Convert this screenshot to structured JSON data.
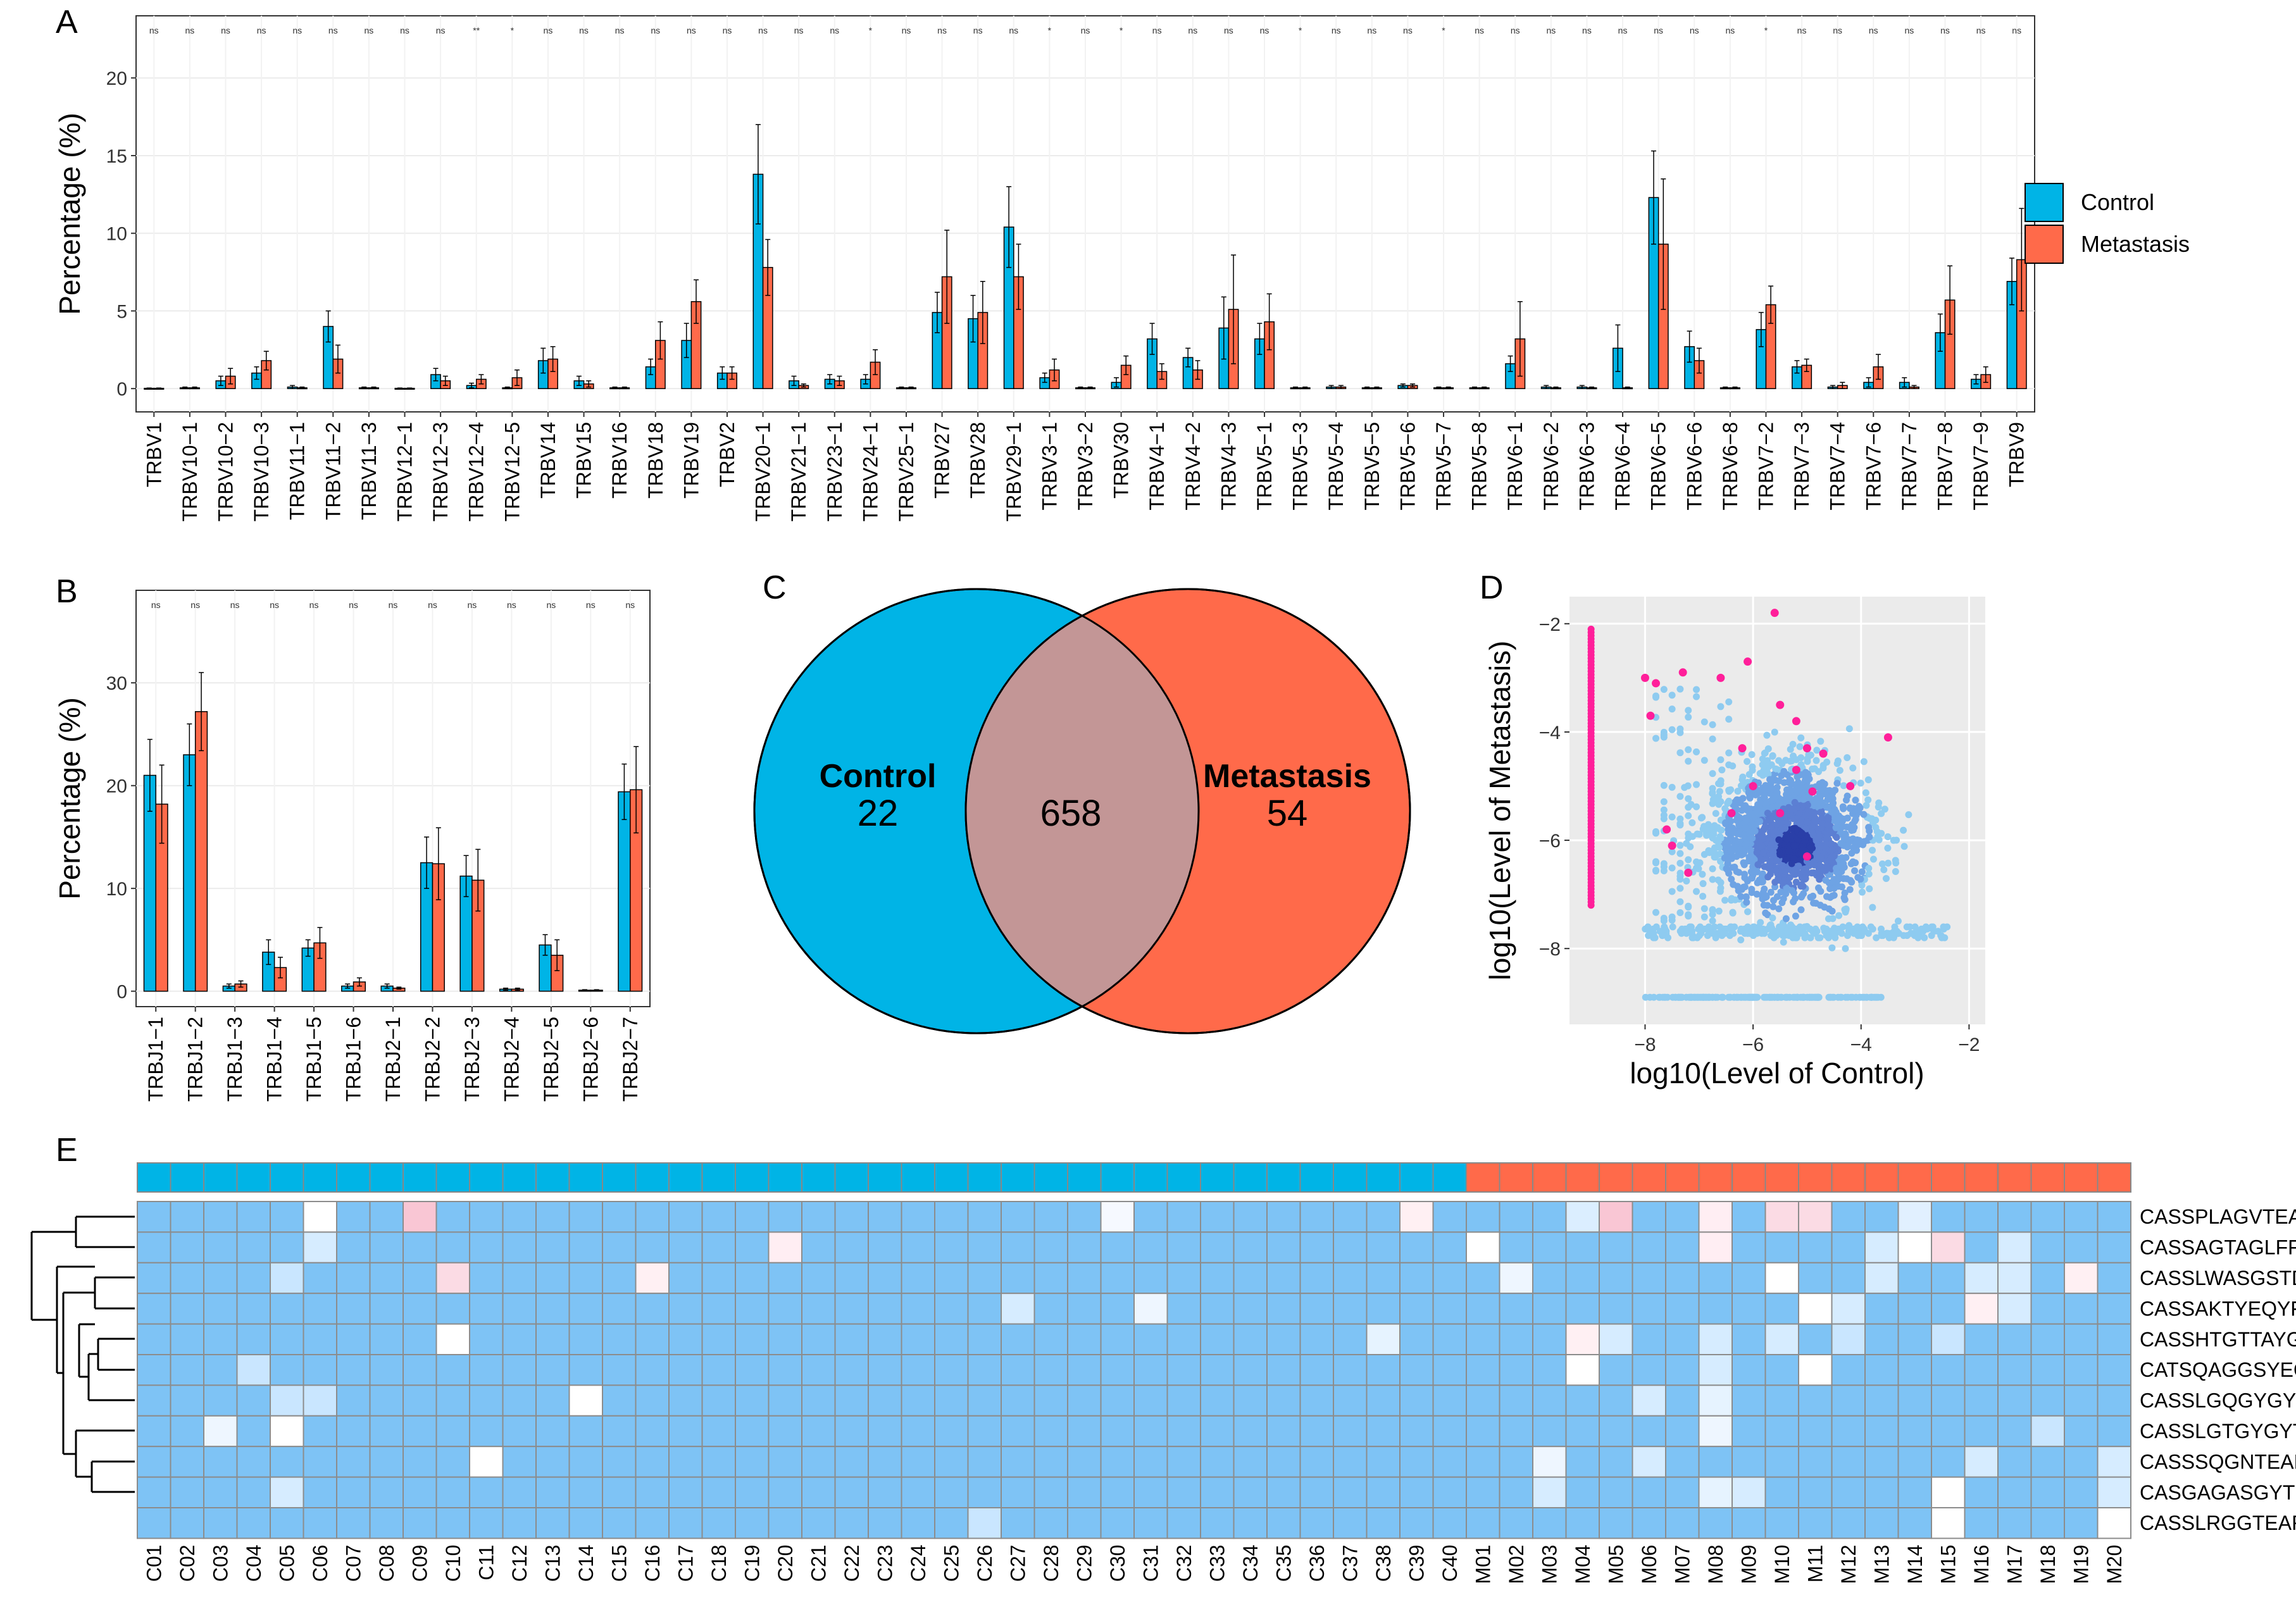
{
  "colors": {
    "control": "#00b4e6",
    "metastasis": "#ff6a4a",
    "hm_base": "#7ec3f5",
    "scatter": "#8ecbf0",
    "scatter_dense": "#2a3fa8",
    "highlight": "#ff1f9a",
    "overlap": "#c39696"
  },
  "panel_labels": {
    "a": "A",
    "b": "B",
    "c": "C",
    "d": "D",
    "e": "E"
  },
  "legend": {
    "control": "Control",
    "metastasis": "Metastasis"
  },
  "chart_data": [
    {
      "id": "A",
      "type": "bar",
      "ylabel": "Percentage (%)",
      "ylim": [
        -1.5,
        24
      ],
      "yticks": [
        0,
        5,
        10,
        15,
        20
      ],
      "categories": [
        "TRBV1",
        "TRBV10−1",
        "TRBV10−2",
        "TRBV10−3",
        "TRBV11−1",
        "TRBV11−2",
        "TRBV11−3",
        "TRBV12−1",
        "TRBV12−3",
        "TRBV12−4",
        "TRBV12−5",
        "TRBV14",
        "TRBV15",
        "TRBV16",
        "TRBV18",
        "TRBV19",
        "TRBV2",
        "TRBV20−1",
        "TRBV21−1",
        "TRBV23−1",
        "TRBV24−1",
        "TRBV25−1",
        "TRBV27",
        "TRBV28",
        "TRBV29−1",
        "TRBV3−1",
        "TRBV3−2",
        "TRBV30",
        "TRBV4−1",
        "TRBV4−2",
        "TRBV4−3",
        "TRBV5−1",
        "TRBV5−3",
        "TRBV5−4",
        "TRBV5−5",
        "TRBV5−6",
        "TRBV5−7",
        "TRBV5−8",
        "TRBV6−1",
        "TRBV6−2",
        "TRBV6−3",
        "TRBV6−4",
        "TRBV6−5",
        "TRBV6−6",
        "TRBV6−8",
        "TRBV7−2",
        "TRBV7−3",
        "TRBV7−4",
        "TRBV7−6",
        "TRBV7−7",
        "TRBV7−8",
        "TRBV7−9",
        "TRBV9"
      ],
      "significance": [
        "ns",
        "ns",
        "ns",
        "ns",
        "ns",
        "ns",
        "ns",
        "ns",
        "ns",
        "**",
        "*",
        "ns",
        "ns",
        "ns",
        "ns",
        "ns",
        "ns",
        "ns",
        "ns",
        "ns",
        "*",
        "ns",
        "ns",
        "ns",
        "ns",
        "*",
        "ns",
        "*",
        "ns",
        "ns",
        "ns",
        "ns",
        "*",
        "ns",
        "ns",
        "ns",
        "*",
        "ns",
        "ns",
        "ns",
        "ns",
        "ns",
        "ns",
        "ns",
        "ns",
        "*",
        "ns",
        "ns",
        "ns",
        "ns",
        "ns",
        "ns",
        "ns"
      ],
      "series": [
        {
          "name": "Control",
          "values": [
            0.02,
            0.05,
            0.5,
            1.0,
            0.1,
            4.0,
            0.05,
            0.02,
            0.9,
            0.2,
            0.05,
            1.8,
            0.5,
            0.05,
            1.4,
            3.1,
            1.0,
            13.8,
            0.5,
            0.6,
            0.6,
            0.05,
            4.9,
            4.5,
            10.4,
            0.7,
            0.05,
            0.4,
            3.2,
            2.0,
            3.9,
            3.2,
            0.05,
            0.1,
            0.05,
            0.2,
            0.05,
            0.05,
            1.6,
            0.1,
            0.1,
            2.6,
            12.3,
            2.7,
            0.05,
            3.8,
            1.4,
            0.1,
            0.4,
            0.4,
            3.6,
            0.6,
            6.9
          ],
          "errors": [
            0.02,
            0.05,
            0.3,
            0.4,
            0.1,
            1.0,
            0.05,
            0.02,
            0.4,
            0.15,
            0.05,
            0.8,
            0.3,
            0.05,
            0.5,
            1.1,
            0.4,
            3.2,
            0.3,
            0.3,
            0.3,
            0.05,
            1.3,
            1.5,
            2.6,
            0.3,
            0.05,
            0.3,
            1.0,
            0.6,
            2.0,
            1.0,
            0.05,
            0.1,
            0.05,
            0.1,
            0.05,
            0.05,
            0.5,
            0.1,
            0.1,
            1.5,
            3.0,
            1.0,
            0.05,
            1.1,
            0.4,
            0.1,
            0.3,
            0.3,
            1.2,
            0.3,
            1.5
          ]
        },
        {
          "name": "Metastasis",
          "values": [
            0.02,
            0.05,
            0.8,
            1.8,
            0.05,
            1.9,
            0.05,
            0.02,
            0.5,
            0.6,
            0.7,
            1.9,
            0.3,
            0.05,
            3.1,
            5.6,
            1.0,
            7.8,
            0.2,
            0.5,
            1.7,
            0.05,
            7.2,
            4.9,
            7.2,
            1.2,
            0.05,
            1.5,
            1.1,
            1.2,
            5.1,
            4.3,
            0.05,
            0.1,
            0.05,
            0.2,
            0.05,
            0.05,
            3.2,
            0.05,
            0.05,
            0.05,
            9.3,
            1.8,
            0.05,
            5.4,
            1.5,
            0.2,
            1.4,
            0.1,
            5.7,
            0.9,
            8.3
          ],
          "errors": [
            0.02,
            0.05,
            0.5,
            0.6,
            0.05,
            0.9,
            0.05,
            0.02,
            0.3,
            0.3,
            0.5,
            0.8,
            0.2,
            0.05,
            1.2,
            1.4,
            0.4,
            1.8,
            0.1,
            0.3,
            0.8,
            0.05,
            3.0,
            2.0,
            2.1,
            0.7,
            0.05,
            0.6,
            0.5,
            0.6,
            3.5,
            1.8,
            0.05,
            0.1,
            0.05,
            0.1,
            0.05,
            0.05,
            2.4,
            0.05,
            0.05,
            0.05,
            4.2,
            0.8,
            0.05,
            1.2,
            0.4,
            0.2,
            0.8,
            0.1,
            2.2,
            0.5,
            3.3
          ]
        }
      ]
    },
    {
      "id": "B",
      "type": "bar",
      "ylabel": "Percentage (%)",
      "ylim": [
        -1.5,
        39
      ],
      "yticks": [
        0,
        10,
        20,
        30
      ],
      "categories": [
        "TRBJ1−1",
        "TRBJ1−2",
        "TRBJ1−3",
        "TRBJ1−4",
        "TRBJ1−5",
        "TRBJ1−6",
        "TRBJ2−1",
        "TRBJ2−2",
        "TRBJ2−3",
        "TRBJ2−4",
        "TRBJ2−5",
        "TRBJ2−6",
        "TRBJ2−7"
      ],
      "significance": [
        "ns",
        "ns",
        "ns",
        "ns",
        "ns",
        "ns",
        "ns",
        "ns",
        "ns",
        "ns",
        "ns",
        "ns",
        "ns"
      ],
      "series": [
        {
          "name": "Control",
          "values": [
            21.0,
            23.0,
            0.5,
            3.8,
            4.2,
            0.5,
            0.5,
            12.5,
            11.2,
            0.2,
            4.5,
            0.1,
            19.4
          ],
          "errors": [
            3.5,
            3.0,
            0.2,
            1.2,
            0.8,
            0.2,
            0.2,
            2.5,
            2.0,
            0.1,
            1.0,
            0.05,
            2.7
          ]
        },
        {
          "name": "Metastasis",
          "values": [
            18.2,
            27.2,
            0.7,
            2.3,
            4.7,
            0.9,
            0.3,
            12.4,
            10.8,
            0.2,
            3.5,
            0.1,
            19.6
          ],
          "errors": [
            3.8,
            3.8,
            0.3,
            1.0,
            1.5,
            0.4,
            0.1,
            3.5,
            3.0,
            0.1,
            1.5,
            0.05,
            4.2
          ]
        }
      ]
    },
    {
      "id": "C",
      "type": "venn",
      "sets": [
        {
          "label": "Control",
          "only": "22"
        },
        {
          "label": "Metastasis",
          "only": "54"
        }
      ],
      "overlap": "658"
    },
    {
      "id": "D",
      "type": "scatter",
      "xlabel": "log10(Level of Control)",
      "ylabel": "log10(Level of Metastasis)",
      "xlim": [
        -9.4,
        -1.7
      ],
      "ylim": [
        -9.4,
        -1.5
      ],
      "xticks": [
        -8,
        -6,
        -4,
        -2
      ],
      "yticks": [
        -2,
        -4,
        -6,
        -8
      ],
      "highlighted_points": [
        [
          -5.6,
          -1.8
        ],
        [
          -8.0,
          -3.0
        ],
        [
          -7.8,
          -3.1
        ],
        [
          -7.3,
          -2.9
        ],
        [
          -6.6,
          -3.0
        ],
        [
          -6.1,
          -2.7
        ],
        [
          -5.5,
          -3.5
        ],
        [
          -5.2,
          -3.8
        ],
        [
          -5.0,
          -4.3
        ],
        [
          -5.2,
          -4.7
        ],
        [
          -4.7,
          -4.4
        ],
        [
          -6.2,
          -4.3
        ],
        [
          -6.0,
          -5.0
        ],
        [
          -5.5,
          -5.5
        ],
        [
          -6.4,
          -5.5
        ],
        [
          -4.9,
          -5.1
        ],
        [
          -4.2,
          -5.0
        ],
        [
          -3.5,
          -4.1
        ],
        [
          -7.6,
          -5.8
        ],
        [
          -7.5,
          -6.1
        ],
        [
          -7.2,
          -6.6
        ],
        [
          -5.0,
          -6.3
        ],
        [
          -7.9,
          -3.7
        ]
      ]
    },
    {
      "id": "E",
      "type": "heatmap",
      "columns": [
        "C01",
        "C02",
        "C03",
        "C04",
        "C05",
        "C06",
        "C07",
        "C08",
        "C09",
        "C10",
        "C11",
        "C12",
        "C13",
        "C14",
        "C15",
        "C16",
        "C17",
        "C18",
        "C19",
        "C20",
        "C21",
        "C22",
        "C23",
        "C24",
        "C25",
        "C26",
        "C27",
        "C28",
        "C29",
        "C30",
        "C31",
        "C32",
        "C33",
        "C34",
        "C35",
        "C36",
        "C37",
        "C38",
        "C39",
        "C40",
        "M01",
        "M02",
        "M03",
        "M04",
        "M05",
        "M06",
        "M07",
        "M08",
        "M09",
        "M10",
        "M11",
        "M12",
        "M13",
        "M14",
        "M15",
        "M16",
        "M17",
        "M18",
        "M19",
        "M20"
      ],
      "rows": [
        "CASSPLAGVTEAFF",
        "CASSAGTAGLFF",
        "CASSLWASGSTDTQYF",
        "CASSAKTYEQYF",
        "CASSHTGTTAYGYTF",
        "CATSQAGGSYEQYF",
        "CASSLGQGYGYTF",
        "CASSLGTGYGYTF",
        "CASSSQGNTEAFF",
        "CASGAGASGYTF",
        "CASSLRGGTEAFF"
      ],
      "special_cells": [
        [
          0,
          5,
          "#ffffff"
        ],
        [
          0,
          8,
          "#f9c6d4"
        ],
        [
          0,
          29,
          "#f6f9ff"
        ],
        [
          0,
          38,
          "#fff0f3"
        ],
        [
          0,
          43,
          "#dbeeff"
        ],
        [
          0,
          44,
          "#f9c6d4"
        ],
        [
          0,
          47,
          "#ffeef3"
        ],
        [
          0,
          49,
          "#fbdbe4"
        ],
        [
          0,
          50,
          "#fbdbe4"
        ],
        [
          0,
          53,
          "#e1f0ff"
        ],
        [
          1,
          5,
          "#d6ecff"
        ],
        [
          1,
          19,
          "#ffeef3"
        ],
        [
          1,
          40,
          "#ffffff"
        ],
        [
          1,
          47,
          "#ffeef3"
        ],
        [
          1,
          52,
          "#d6ecff"
        ],
        [
          1,
          53,
          "#ffffff"
        ],
        [
          1,
          54,
          "#fbdbe4"
        ],
        [
          1,
          56,
          "#d6ecff"
        ],
        [
          2,
          4,
          "#c9e6ff"
        ],
        [
          2,
          9,
          "#fbdbe4"
        ],
        [
          2,
          15,
          "#fff0f3"
        ],
        [
          2,
          41,
          "#eef6ff"
        ],
        [
          2,
          49,
          "#ffffff"
        ],
        [
          2,
          52,
          "#d6ecff"
        ],
        [
          2,
          55,
          "#d6ecff"
        ],
        [
          2,
          56,
          "#d6ecff"
        ],
        [
          2,
          58,
          "#fff0f3"
        ],
        [
          3,
          26,
          "#d6ecff"
        ],
        [
          3,
          30,
          "#eef6ff"
        ],
        [
          3,
          50,
          "#ffffff"
        ],
        [
          3,
          51,
          "#d6ecff"
        ],
        [
          3,
          55,
          "#fff0f3"
        ],
        [
          3,
          56,
          "#d6ecff"
        ],
        [
          4,
          9,
          "#ffffff"
        ],
        [
          4,
          37,
          "#e6f3ff"
        ],
        [
          4,
          43,
          "#fff0f3"
        ],
        [
          4,
          44,
          "#d6ecff"
        ],
        [
          4,
          47,
          "#d6ecff"
        ],
        [
          4,
          49,
          "#d6ecff"
        ],
        [
          4,
          51,
          "#c9e6ff"
        ],
        [
          4,
          54,
          "#c9e6ff"
        ],
        [
          5,
          3,
          "#c9e6ff"
        ],
        [
          5,
          43,
          "#ffffff"
        ],
        [
          5,
          47,
          "#d6ecff"
        ],
        [
          5,
          50,
          "#ffffff"
        ],
        [
          6,
          4,
          "#c9e6ff"
        ],
        [
          6,
          5,
          "#c9e6ff"
        ],
        [
          6,
          13,
          "#ffffff"
        ],
        [
          6,
          45,
          "#d6ecff"
        ],
        [
          6,
          47,
          "#e6f3ff"
        ],
        [
          7,
          2,
          "#eef6ff"
        ],
        [
          7,
          4,
          "#ffffff"
        ],
        [
          7,
          47,
          "#eef6ff"
        ],
        [
          7,
          57,
          "#c9e6ff"
        ],
        [
          8,
          10,
          "#ffffff"
        ],
        [
          8,
          42,
          "#eef6ff"
        ],
        [
          8,
          45,
          "#d6ecff"
        ],
        [
          8,
          55,
          "#d6ecff"
        ],
        [
          8,
          59,
          "#d6ecff"
        ],
        [
          9,
          4,
          "#d6ecff"
        ],
        [
          9,
          42,
          "#d6ecff"
        ],
        [
          9,
          47,
          "#e6f3ff"
        ],
        [
          9,
          48,
          "#d6ecff"
        ],
        [
          9,
          54,
          "#ffffff"
        ],
        [
          9,
          59,
          "#d6ecff"
        ],
        [
          10,
          25,
          "#c9e6ff"
        ],
        [
          10,
          54,
          "#ffffff"
        ],
        [
          10,
          59,
          "#ffffff"
        ]
      ]
    }
  ]
}
